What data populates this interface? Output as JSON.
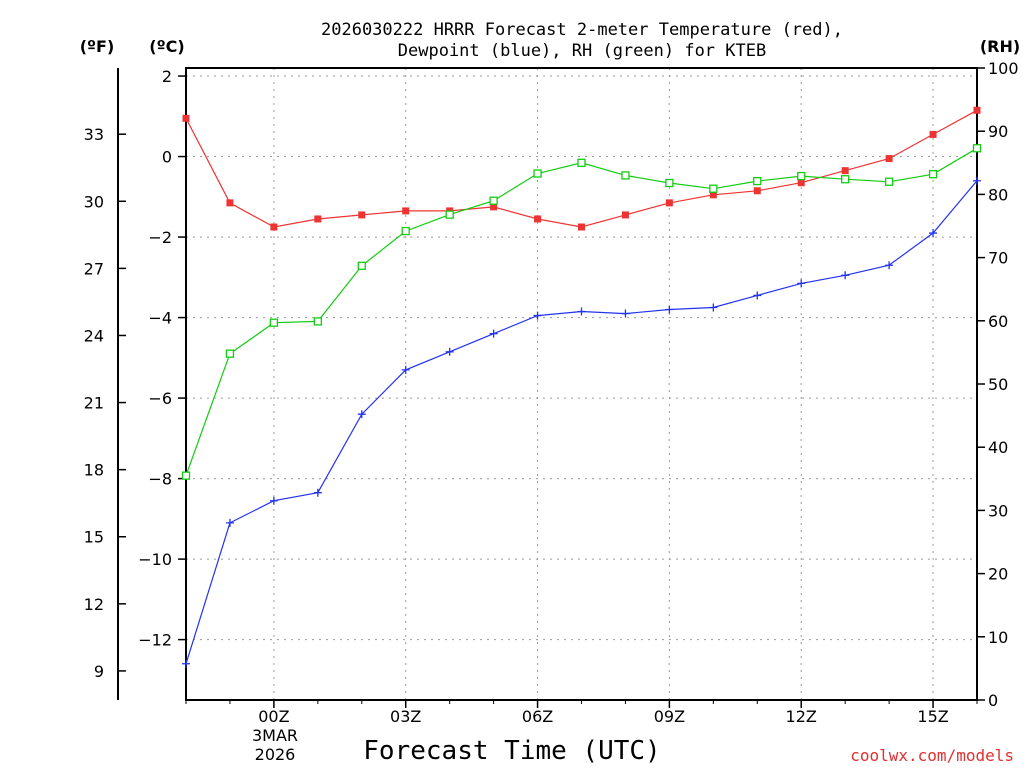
{
  "chart_data": {
    "type": "line",
    "title_lines": [
      "2026030222 HRRR Forecast 2-meter Temperature (red),",
      "Dewpoint (blue), RH (green) for KTEB"
    ],
    "xlabel": "Forecast Time (UTC)",
    "x": [
      -2,
      -1,
      0,
      1,
      2,
      3,
      4,
      5,
      6,
      7,
      8,
      9,
      10,
      11,
      12,
      13,
      14,
      15,
      16
    ],
    "xlim": [
      -2,
      16
    ],
    "x_ticks": [
      {
        "x": 0,
        "label": "00Z"
      },
      {
        "x": 3,
        "label": "03Z"
      },
      {
        "x": 6,
        "label": "06Z"
      },
      {
        "x": 9,
        "label": "09Z"
      },
      {
        "x": 12,
        "label": "12Z"
      },
      {
        "x": 15,
        "label": "15Z"
      }
    ],
    "date_label": [
      "3MAR",
      "2026"
    ],
    "celsius_axis": {
      "unit_label": "(ºC)",
      "lim": [
        -13.5,
        2.2
      ],
      "ticks": [
        2,
        0,
        -2,
        -4,
        -6,
        -8,
        -10,
        -12
      ],
      "tick_labels": [
        "2",
        "0",
        "−2",
        "−4",
        "−6",
        "−8",
        "−10",
        "−12"
      ]
    },
    "fahrenheit_axis": {
      "unit_label": "(ºF)",
      "ticks": [
        33,
        30,
        27,
        24,
        21,
        18,
        15,
        12,
        9
      ],
      "tick_labels": [
        "33",
        "30",
        "27",
        "24",
        "21",
        "18",
        "15",
        "12",
        "9"
      ]
    },
    "rh_axis": {
      "unit_label": "(RH)",
      "lim": [
        0,
        100
      ],
      "ticks": [
        100,
        90,
        80,
        70,
        60,
        50,
        40,
        30,
        20,
        10,
        0
      ],
      "tick_labels": [
        "100",
        "90",
        "80",
        "70",
        "60",
        "50",
        "40",
        "30",
        "20",
        "10",
        "0"
      ]
    },
    "series": [
      {
        "name": "2-meter Temperature",
        "unit": "°C",
        "color": "#ee3333",
        "marker": "filled-square",
        "values": [
          0.95,
          -1.15,
          -1.75,
          -1.55,
          -1.45,
          -1.35,
          -1.35,
          -1.25,
          -1.55,
          -1.75,
          -1.45,
          -1.15,
          -0.95,
          -0.85,
          -0.65,
          -0.35,
          -0.05,
          0.55,
          1.15
        ]
      },
      {
        "name": "Dewpoint",
        "unit": "°C",
        "color": "#2233ee",
        "marker": "plus",
        "values": [
          -12.6,
          -9.1,
          -8.55,
          -8.35,
          -6.4,
          -5.3,
          -4.85,
          -4.4,
          -3.95,
          -3.85,
          -3.9,
          -3.8,
          -3.75,
          -3.45,
          -3.15,
          -2.95,
          -2.7,
          -1.9,
          -0.6
        ]
      },
      {
        "name": "RH",
        "unit": "%",
        "color": "#11cc11",
        "marker": "open-square",
        "values": [
          35.5,
          54.8,
          59.7,
          59.9,
          68.7,
          74.2,
          76.8,
          79.0,
          83.3,
          85.0,
          83.0,
          81.8,
          80.9,
          82.1,
          82.9,
          82.4,
          82.0,
          83.2,
          87.3
        ]
      }
    ]
  },
  "credit": "coolwx.com/models"
}
